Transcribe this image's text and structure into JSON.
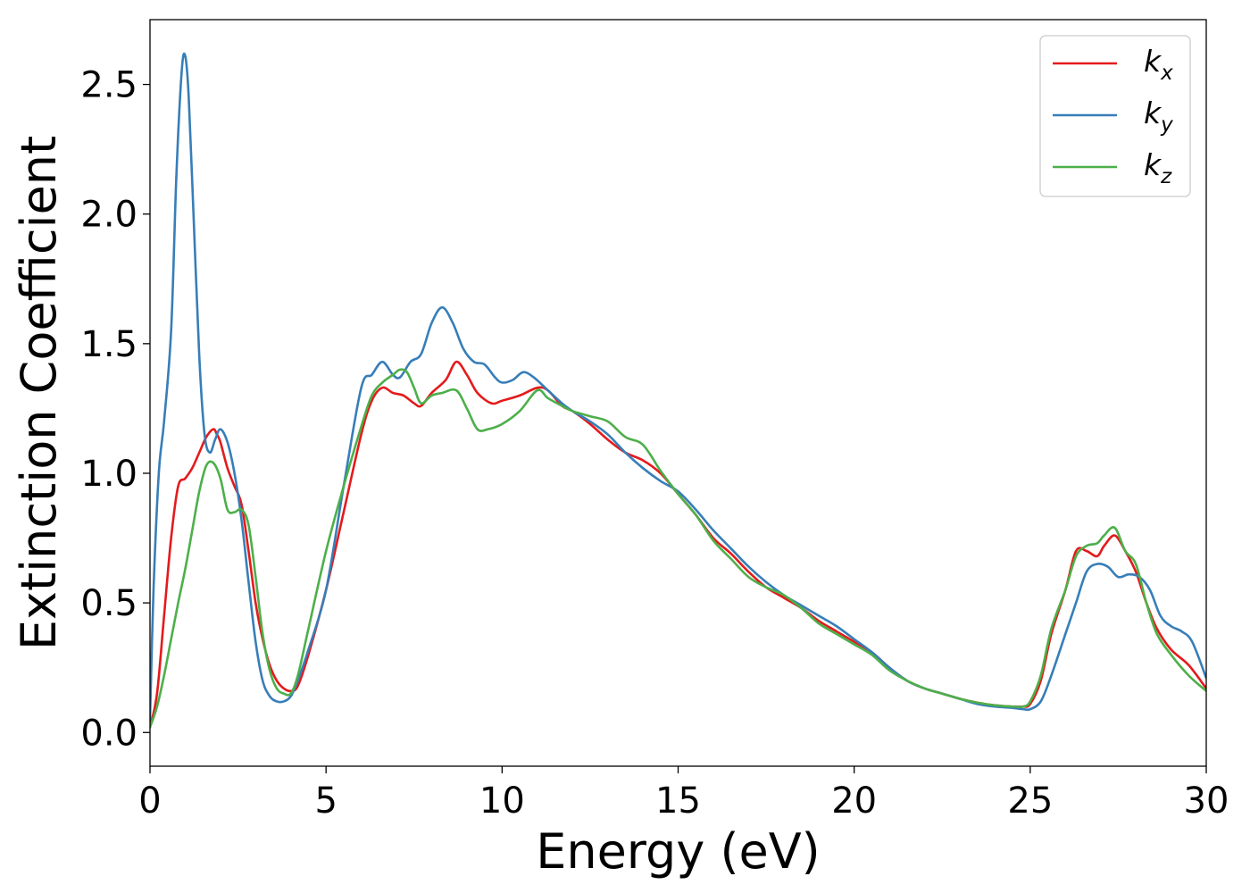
{
  "chart_data": {
    "type": "line",
    "title": "",
    "xlabel": "Energy (eV)",
    "ylabel": "Extinction Coefficient",
    "xlim": [
      0,
      30
    ],
    "ylim": [
      -0.13,
      2.75
    ],
    "xticks": [
      0,
      5,
      10,
      15,
      20,
      25,
      30
    ],
    "xtick_labels": [
      "0",
      "5",
      "10",
      "15",
      "20",
      "25",
      "30"
    ],
    "yticks": [
      0.0,
      0.5,
      1.0,
      1.5,
      2.0,
      2.5
    ],
    "ytick_labels": [
      "0.0",
      "0.5",
      "1.0",
      "1.5",
      "2.0",
      "2.5"
    ],
    "grid": false,
    "legend_position": "top-right",
    "series": [
      {
        "name": "k",
        "subscript": "x",
        "color": "#e41a1c",
        "x": [
          0,
          0.2,
          0.4,
          0.6,
          0.8,
          1.0,
          1.2,
          1.4,
          1.6,
          1.8,
          1.9,
          2.0,
          2.2,
          2.4,
          2.6,
          2.8,
          3.0,
          3.2,
          3.4,
          3.6,
          3.8,
          4.0,
          4.2,
          4.5,
          5.0,
          5.5,
          6.0,
          6.3,
          6.6,
          6.9,
          7.2,
          7.5,
          7.7,
          8.0,
          8.4,
          8.7,
          9.0,
          9.3,
          9.7,
          10.0,
          10.5,
          11.0,
          11.3,
          11.7,
          12.0,
          12.5,
          13.0,
          13.5,
          14.0,
          14.5,
          15.0,
          15.5,
          16.0,
          16.5,
          17.0,
          17.5,
          18.0,
          18.5,
          19.0,
          19.5,
          20.0,
          20.5,
          21.0,
          21.5,
          22.0,
          22.5,
          23.0,
          23.5,
          24.0,
          24.5,
          24.8,
          25.0,
          25.3,
          25.6,
          26.0,
          26.3,
          26.6,
          26.9,
          27.1,
          27.4,
          27.7,
          28.0,
          28.3,
          28.6,
          29.0,
          29.5,
          30.0
        ],
        "y": [
          0.02,
          0.15,
          0.45,
          0.75,
          0.95,
          0.98,
          1.02,
          1.08,
          1.14,
          1.17,
          1.15,
          1.12,
          1.02,
          0.95,
          0.88,
          0.7,
          0.5,
          0.36,
          0.26,
          0.2,
          0.17,
          0.16,
          0.18,
          0.3,
          0.55,
          0.85,
          1.15,
          1.28,
          1.33,
          1.31,
          1.3,
          1.27,
          1.26,
          1.31,
          1.36,
          1.43,
          1.38,
          1.31,
          1.27,
          1.28,
          1.3,
          1.33,
          1.32,
          1.26,
          1.24,
          1.19,
          1.13,
          1.08,
          1.05,
          1.0,
          0.92,
          0.84,
          0.75,
          0.69,
          0.62,
          0.56,
          0.52,
          0.48,
          0.43,
          0.39,
          0.35,
          0.31,
          0.25,
          0.2,
          0.17,
          0.15,
          0.13,
          0.115,
          0.105,
          0.1,
          0.1,
          0.11,
          0.2,
          0.38,
          0.55,
          0.7,
          0.7,
          0.68,
          0.72,
          0.76,
          0.7,
          0.62,
          0.5,
          0.4,
          0.32,
          0.26,
          0.17
        ]
      },
      {
        "name": "k",
        "subscript": "y",
        "color": "#377eb8",
        "x": [
          0,
          0.1,
          0.25,
          0.4,
          0.6,
          0.75,
          0.9,
          1.0,
          1.1,
          1.25,
          1.4,
          1.55,
          1.7,
          1.85,
          2.0,
          2.2,
          2.4,
          2.6,
          2.8,
          3.0,
          3.2,
          3.4,
          3.6,
          3.8,
          4.0,
          4.2,
          4.5,
          5.0,
          5.5,
          6.0,
          6.3,
          6.6,
          6.9,
          7.1,
          7.4,
          7.7,
          8.0,
          8.3,
          8.6,
          8.9,
          9.2,
          9.5,
          9.8,
          10.0,
          10.3,
          10.6,
          10.9,
          11.3,
          11.7,
          12.0,
          12.5,
          13.0,
          13.5,
          14.0,
          14.5,
          15.0,
          15.5,
          16.0,
          16.5,
          17.0,
          17.5,
          18.0,
          18.5,
          19.0,
          19.5,
          20.0,
          20.5,
          21.0,
          21.5,
          22.0,
          22.5,
          23.0,
          23.5,
          24.0,
          24.5,
          24.8,
          25.0,
          25.3,
          25.6,
          26.0,
          26.3,
          26.6,
          26.9,
          27.2,
          27.5,
          27.8,
          28.1,
          28.4,
          28.7,
          29.0,
          29.3,
          29.6,
          30.0
        ],
        "y": [
          0.05,
          0.55,
          1.0,
          1.2,
          1.55,
          2.15,
          2.55,
          2.61,
          2.45,
          1.95,
          1.45,
          1.15,
          1.08,
          1.13,
          1.17,
          1.12,
          1.0,
          0.82,
          0.58,
          0.35,
          0.2,
          0.14,
          0.12,
          0.12,
          0.14,
          0.2,
          0.32,
          0.55,
          0.95,
          1.33,
          1.38,
          1.43,
          1.38,
          1.37,
          1.43,
          1.46,
          1.58,
          1.64,
          1.58,
          1.48,
          1.43,
          1.42,
          1.37,
          1.35,
          1.36,
          1.39,
          1.37,
          1.32,
          1.27,
          1.24,
          1.2,
          1.15,
          1.08,
          1.02,
          0.97,
          0.93,
          0.86,
          0.78,
          0.71,
          0.64,
          0.58,
          0.53,
          0.49,
          0.45,
          0.41,
          0.36,
          0.31,
          0.25,
          0.2,
          0.17,
          0.15,
          0.13,
          0.11,
          0.1,
          0.095,
          0.09,
          0.09,
          0.12,
          0.22,
          0.38,
          0.5,
          0.62,
          0.65,
          0.64,
          0.6,
          0.61,
          0.6,
          0.55,
          0.45,
          0.41,
          0.39,
          0.35,
          0.21
        ]
      },
      {
        "name": "k",
        "subscript": "z",
        "color": "#4daf4a",
        "x": [
          0,
          0.2,
          0.4,
          0.6,
          0.8,
          1.0,
          1.2,
          1.4,
          1.6,
          1.8,
          2.0,
          2.2,
          2.4,
          2.6,
          2.8,
          3.0,
          3.2,
          3.4,
          3.6,
          3.8,
          4.0,
          4.2,
          4.5,
          5.0,
          5.5,
          6.0,
          6.3,
          6.6,
          6.9,
          7.1,
          7.3,
          7.5,
          7.7,
          8.0,
          8.3,
          8.7,
          9.0,
          9.3,
          9.6,
          10.0,
          10.5,
          11.0,
          11.3,
          11.7,
          12.0,
          12.5,
          13.0,
          13.5,
          14.0,
          14.5,
          15.0,
          15.5,
          16.0,
          16.5,
          17.0,
          17.5,
          18.0,
          18.5,
          19.0,
          19.5,
          20.0,
          20.5,
          21.0,
          21.5,
          22.0,
          22.5,
          23.0,
          23.5,
          24.0,
          24.5,
          24.8,
          25.0,
          25.3,
          25.6,
          26.0,
          26.3,
          26.6,
          26.9,
          27.1,
          27.4,
          27.7,
          28.0,
          28.3,
          28.6,
          29.0,
          29.5,
          30.0
        ],
        "y": [
          0.02,
          0.1,
          0.22,
          0.36,
          0.5,
          0.63,
          0.78,
          0.93,
          1.03,
          1.04,
          0.98,
          0.86,
          0.85,
          0.86,
          0.8,
          0.6,
          0.38,
          0.24,
          0.17,
          0.15,
          0.15,
          0.22,
          0.4,
          0.7,
          0.95,
          1.18,
          1.3,
          1.35,
          1.38,
          1.4,
          1.39,
          1.33,
          1.27,
          1.3,
          1.31,
          1.32,
          1.25,
          1.17,
          1.17,
          1.19,
          1.24,
          1.32,
          1.29,
          1.26,
          1.24,
          1.22,
          1.2,
          1.14,
          1.11,
          1.01,
          0.92,
          0.84,
          0.74,
          0.67,
          0.6,
          0.56,
          0.53,
          0.48,
          0.42,
          0.38,
          0.34,
          0.3,
          0.24,
          0.2,
          0.17,
          0.15,
          0.13,
          0.115,
          0.105,
          0.1,
          0.1,
          0.12,
          0.22,
          0.4,
          0.55,
          0.68,
          0.72,
          0.73,
          0.76,
          0.79,
          0.7,
          0.65,
          0.5,
          0.38,
          0.3,
          0.22,
          0.16
        ]
      }
    ]
  }
}
